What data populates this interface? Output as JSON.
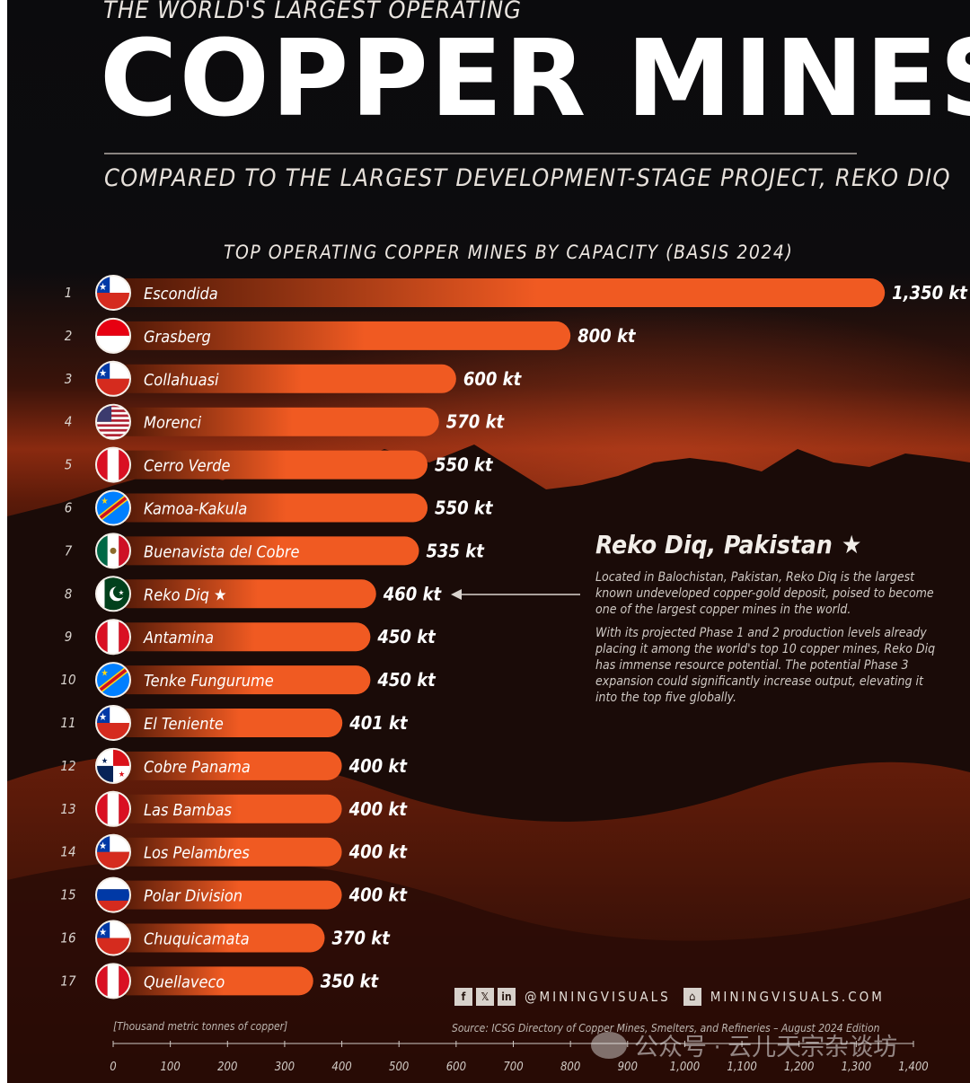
{
  "header": {
    "kicker": "THE WORLD'S LARGEST OPERATING",
    "title": "COPPER MINES",
    "subtitle": "COMPARED TO THE LARGEST DEVELOPMENT-STAGE PROJECT, REKO DIQ"
  },
  "chart_data": {
    "type": "bar",
    "orientation": "horizontal",
    "title": "TOP OPERATING COPPER MINES BY CAPACITY (BASIS 2024)",
    "xlabel": "[Thousand metric tonnes of copper]",
    "unit": "kt",
    "xlim": [
      0,
      1400
    ],
    "ticks": [
      "0",
      "100",
      "200",
      "300",
      "400",
      "500",
      "600",
      "700",
      "800",
      "900",
      "1,000",
      "1,100",
      "1,200",
      "1,300",
      "1,400"
    ],
    "tick_values": [
      0,
      100,
      200,
      300,
      400,
      500,
      600,
      700,
      800,
      900,
      1000,
      1100,
      1200,
      1300,
      1400
    ],
    "bar_color": "#f05a22",
    "bar_color_dark": "#4a1606",
    "rows": [
      {
        "rank": "1",
        "name": "Escondida",
        "value": 1350,
        "label": "1,350 kt",
        "flag": "chile"
      },
      {
        "rank": "2",
        "name": "Grasberg",
        "value": 800,
        "label": "800 kt",
        "flag": "indonesia"
      },
      {
        "rank": "3",
        "name": "Collahuasi",
        "value": 600,
        "label": "600 kt",
        "flag": "chile"
      },
      {
        "rank": "4",
        "name": "Morenci",
        "value": 570,
        "label": "570 kt",
        "flag": "usa"
      },
      {
        "rank": "5",
        "name": "Cerro Verde",
        "value": 550,
        "label": "550 kt",
        "flag": "peru"
      },
      {
        "rank": "6",
        "name": "Kamoa-Kakula",
        "value": 550,
        "label": "550 kt",
        "flag": "drc"
      },
      {
        "rank": "7",
        "name": "Buenavista del Cobre",
        "value": 535,
        "label": "535 kt",
        "flag": "mexico"
      },
      {
        "rank": "8",
        "name": "Reko Diq ★",
        "value": 460,
        "label": "460 kt",
        "flag": "pakistan",
        "highlight": true
      },
      {
        "rank": "9",
        "name": "Antamina",
        "value": 450,
        "label": "450 kt",
        "flag": "peru"
      },
      {
        "rank": "10",
        "name": "Tenke Fungurume",
        "value": 450,
        "label": "450 kt",
        "flag": "drc"
      },
      {
        "rank": "11",
        "name": "El Teniente",
        "value": 401,
        "label": "401 kt",
        "flag": "chile"
      },
      {
        "rank": "12",
        "name": "Cobre Panama",
        "value": 400,
        "label": "400 kt",
        "flag": "panama"
      },
      {
        "rank": "13",
        "name": "Las Bambas",
        "value": 400,
        "label": "400 kt",
        "flag": "peru"
      },
      {
        "rank": "14",
        "name": "Los Pelambres",
        "value": 400,
        "label": "400 kt",
        "flag": "chile"
      },
      {
        "rank": "15",
        "name": "Polar Division",
        "value": 400,
        "label": "400 kt",
        "flag": "russia"
      },
      {
        "rank": "16",
        "name": "Chuquicamata",
        "value": 370,
        "label": "370 kt",
        "flag": "chile"
      },
      {
        "rank": "17",
        "name": "Quellaveco",
        "value": 350,
        "label": "350 kt",
        "flag": "peru"
      }
    ]
  },
  "callout": {
    "title": "Reko Diq, Pakistan",
    "star": "★",
    "paragraph1": "Located in Balochistan, Pakistan, Reko Diq is the largest known undeveloped copper-gold deposit, poised to become one of the largest copper mines in the world.",
    "paragraph2": "With its projected Phase 1 and 2 production levels already placing it among the world's top 10 copper mines, Reko Diq has immense resource potential. The potential Phase 3 expansion could significantly increase output, elevating it into the top five globally."
  },
  "footer": {
    "facebook_icon": "f",
    "x_icon": "𝕏",
    "linkedin_icon": "in",
    "handle": "@MININGVISUALS",
    "home_icon": "⌂",
    "website": "MININGVISUALS.COM",
    "source": "Source: ICSG Directory of Copper Mines, Smelters, and Refineries – August 2024 Edition"
  },
  "watermark": {
    "text": "公众号 · 云儿天宗杂谈坊"
  }
}
